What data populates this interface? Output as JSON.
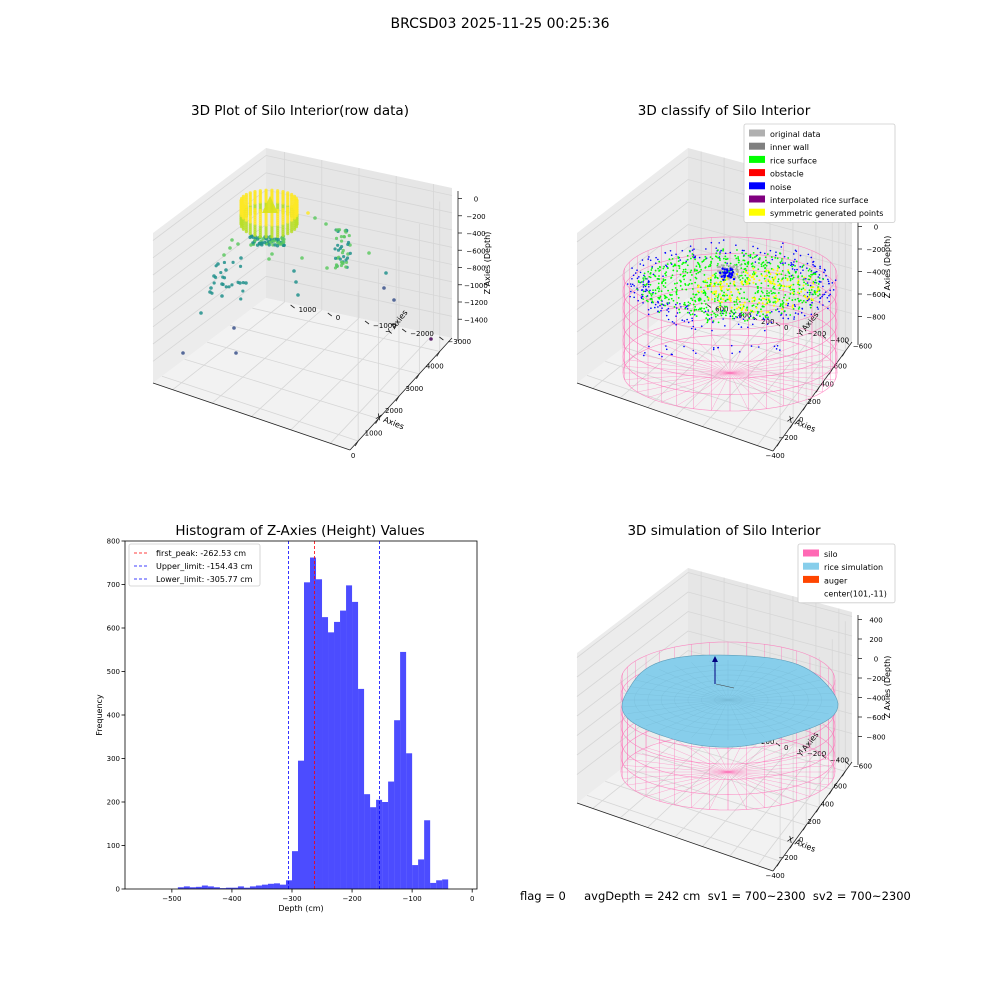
{
  "figure_title": "BRCSD03 2025-11-25 00:25:36",
  "status_text": "flag = 0     avgDepth = 242 cm  sv1 = 700~2300  sv2 = 700~2300",
  "chart_data": [
    {
      "id": "raw",
      "type": "scatter",
      "title": "3D Plot of Silo Interior(row data)",
      "xlabel": "X Axies",
      "ylabel": "Y Axies",
      "zlabel": "Z Axies (Depth)",
      "x_ticks": [
        "0",
        "1000",
        "2000",
        "3000",
        "4000"
      ],
      "y_ticks": [
        "1000",
        "0",
        "−1000",
        "−2000",
        "−3000"
      ],
      "z_ticks": [
        "0",
        "−200",
        "−400",
        "−600",
        "−800",
        "−1000",
        "−1200",
        "−1400"
      ],
      "colormap": [
        "#440154",
        "#3b528b",
        "#21918c",
        "#5ec962",
        "#fde725"
      ]
    },
    {
      "id": "classify",
      "type": "scatter",
      "title": "3D classify of Silo Interior",
      "xlabel": "X Axies",
      "ylabel": "Y Axies",
      "zlabel": "Z Axies (Depth)",
      "x_ticks": [
        "−400",
        "−200",
        "0",
        "200",
        "400",
        "600"
      ],
      "y_ticks": [
        "600",
        "400",
        "200",
        "0",
        "−200",
        "−400",
        "−600"
      ],
      "z_ticks": [
        "200",
        "0",
        "−200",
        "−400",
        "−600",
        "−800"
      ],
      "z_top_partial": "00",
      "legend": [
        {
          "label": "original data",
          "color": "#b0b0b0"
        },
        {
          "label": "inner wall",
          "color": "#808080"
        },
        {
          "label": "rice surface",
          "color": "#00ff00"
        },
        {
          "label": "obstacle",
          "color": "#ff0000"
        },
        {
          "label": "noise",
          "color": "#0000ff"
        },
        {
          "label": "interpolated rice surface",
          "color": "#800080"
        },
        {
          "label": "symmetric generated points",
          "color": "#ffff00"
        }
      ],
      "legend_position": "top-right"
    },
    {
      "id": "histogram",
      "type": "bar",
      "title": "Histogram of Z-Axies (Height) Values",
      "xlabel": "Depth (cm)",
      "ylabel": "Frequency",
      "xlim": [
        -578,
        8
      ],
      "ylim": [
        0,
        800
      ],
      "x_ticks": [
        -500,
        -400,
        -300,
        -200,
        -100,
        0
      ],
      "x_tick_labels": [
        "−500",
        "−400",
        "−300",
        "−200",
        "−100",
        "0"
      ],
      "y_ticks": [
        0,
        100,
        200,
        300,
        400,
        500,
        600,
        700,
        800
      ],
      "bar_color": "#0000ff",
      "bins": [
        [
          -490,
          -480,
          4
        ],
        [
          -480,
          -470,
          6
        ],
        [
          -470,
          -460,
          4
        ],
        [
          -460,
          -450,
          5
        ],
        [
          -450,
          -440,
          8
        ],
        [
          -440,
          -430,
          6
        ],
        [
          -430,
          -420,
          4
        ],
        [
          -420,
          -410,
          2
        ],
        [
          -410,
          -400,
          3
        ],
        [
          -400,
          -390,
          3
        ],
        [
          -390,
          -380,
          6
        ],
        [
          -380,
          -370,
          3
        ],
        [
          -370,
          -360,
          6
        ],
        [
          -360,
          -350,
          8
        ],
        [
          -350,
          -340,
          10
        ],
        [
          -340,
          -330,
          12
        ],
        [
          -330,
          -320,
          13
        ],
        [
          -320,
          -310,
          10
        ],
        [
          -310,
          -300,
          20
        ],
        [
          -300,
          -290,
          87
        ],
        [
          -290,
          -280,
          295
        ],
        [
          -280,
          -270,
          705
        ],
        [
          -270,
          -260,
          762
        ],
        [
          -260,
          -250,
          712
        ],
        [
          -250,
          -240,
          625
        ],
        [
          -240,
          -230,
          590
        ],
        [
          -230,
          -220,
          614
        ],
        [
          -220,
          -210,
          640
        ],
        [
          -210,
          -200,
          698
        ],
        [
          -200,
          -190,
          660
        ],
        [
          -190,
          -180,
          460
        ],
        [
          -180,
          -170,
          218
        ],
        [
          -170,
          -160,
          188
        ],
        [
          -160,
          -150,
          205
        ],
        [
          -150,
          -140,
          200
        ],
        [
          -140,
          -130,
          247
        ],
        [
          -130,
          -120,
          388
        ],
        [
          -120,
          -110,
          545
        ],
        [
          -110,
          -100,
          312
        ],
        [
          -100,
          -90,
          55
        ],
        [
          -90,
          -80,
          68
        ],
        [
          -80,
          -70,
          158
        ],
        [
          -70,
          -60,
          14
        ],
        [
          -60,
          -50,
          20
        ],
        [
          -50,
          -40,
          22
        ]
      ],
      "lines": [
        {
          "label": "first_peak: -262.53 cm",
          "x": -262.53,
          "color": "#ff0000"
        },
        {
          "label": "Upper_limit: -154.43 cm",
          "x": -154.43,
          "color": "#0000ff"
        },
        {
          "label": "Lower_limit: -305.77 cm",
          "x": -305.77,
          "color": "#0000ff"
        }
      ],
      "legend_position": "top-left"
    },
    {
      "id": "simulation",
      "type": "scatter",
      "title": "3D simulation of Silo Interior",
      "xlabel": "X Axies",
      "ylabel": "Y Axies",
      "zlabel": "Z Axies (Depth)",
      "x_ticks": [
        "−400",
        "−200",
        "0",
        "200",
        "400",
        "600"
      ],
      "y_ticks": [
        "600",
        "400",
        "200",
        "0",
        "−200",
        "−400",
        "−600"
      ],
      "z_ticks": [
        "400",
        "200",
        "0",
        "−200",
        "−400",
        "−600",
        "−800"
      ],
      "legend": [
        {
          "label": "silo",
          "color": "#ff69b4"
        },
        {
          "label": "rice simulation",
          "color": "#87ceeb"
        },
        {
          "label": "auger",
          "color": "#ff4500"
        },
        {
          "label": "center(101,-11)",
          "color": ""
        }
      ],
      "legend_position": "top-right"
    }
  ]
}
